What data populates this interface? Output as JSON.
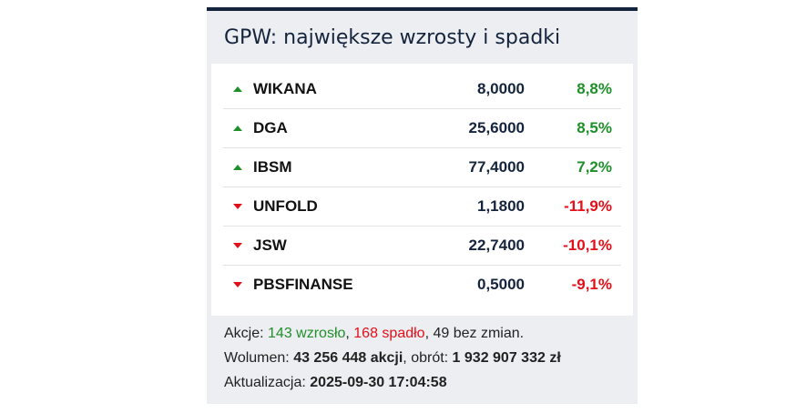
{
  "widget": {
    "title": "GPW: największe wzrosty i spadki",
    "colors": {
      "up": "#1f8f2a",
      "down": "#e3101a"
    },
    "rows": [
      {
        "name": "WIKANA",
        "price": "8,0000",
        "change": "8,8%",
        "direction": "up"
      },
      {
        "name": "DGA",
        "price": "25,6000",
        "change": "8,5%",
        "direction": "up"
      },
      {
        "name": "IBSM",
        "price": "77,4000",
        "change": "7,2%",
        "direction": "up"
      },
      {
        "name": "UNFOLD",
        "price": "1,1800",
        "change": "-11,9%",
        "direction": "down"
      },
      {
        "name": "JSW",
        "price": "22,7400",
        "change": "-10,1%",
        "direction": "down"
      },
      {
        "name": "PBSFINANSE",
        "price": "0,5000",
        "change": "-9,1%",
        "direction": "down"
      }
    ],
    "footer": [
      [
        {
          "text": "Akcje: "
        },
        {
          "text": "143 wzrosło",
          "color": "up"
        },
        {
          "text": ", "
        },
        {
          "text": "168 spadło",
          "color": "down"
        },
        {
          "text": ", 49 bez zmian."
        }
      ],
      [
        {
          "text": "Wolumen: "
        },
        {
          "text": "43 256 448 akcji",
          "bold": true
        },
        {
          "text": ", obrót: "
        },
        {
          "text": "1 932 907 332 zł",
          "bold": true
        }
      ],
      [
        {
          "text": "Aktualizacja: "
        },
        {
          "text": "2025-09-30 17:04:58",
          "bold": true
        }
      ]
    ]
  }
}
